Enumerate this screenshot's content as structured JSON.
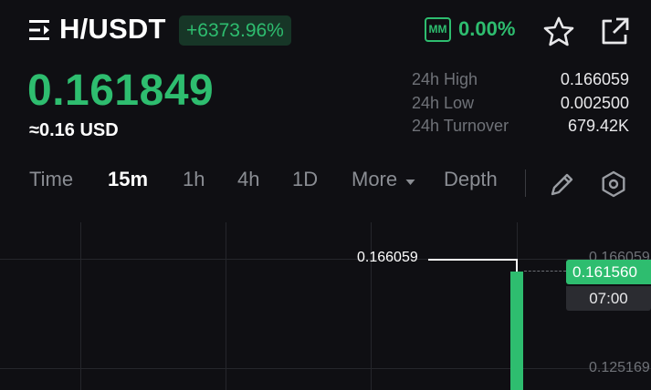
{
  "header": {
    "menu_icon": "menu-icon",
    "pair": "H/USDT",
    "change": "+6373.96%",
    "mm_label": "MM",
    "mm_value": "0.00%",
    "star_icon": "star-icon",
    "share_icon": "share-icon"
  },
  "price": {
    "last": "0.161849",
    "usd": "≈0.16 USD"
  },
  "stats": [
    {
      "label": "24h High",
      "value": "0.166059"
    },
    {
      "label": "24h Low",
      "value": "0.002500"
    },
    {
      "label": "24h Turnover",
      "value": "679.42K"
    }
  ],
  "tabs": {
    "items": [
      "Time",
      "15m",
      "1h",
      "4h",
      "1D",
      "More",
      "Depth"
    ],
    "active": "15m",
    "pencil_icon": "pencil-icon",
    "settings_icon": "hexagon-settings-icon"
  },
  "chart": {
    "high_marker": "0.166059",
    "axis_ticks": [
      "0.166059",
      "0.125169"
    ],
    "current_price": "0.161560",
    "countdown": "07:00",
    "candle_color": "#2ebd6f"
  },
  "colors": {
    "accent_green": "#2ebd6f",
    "background": "#0f0f13"
  }
}
